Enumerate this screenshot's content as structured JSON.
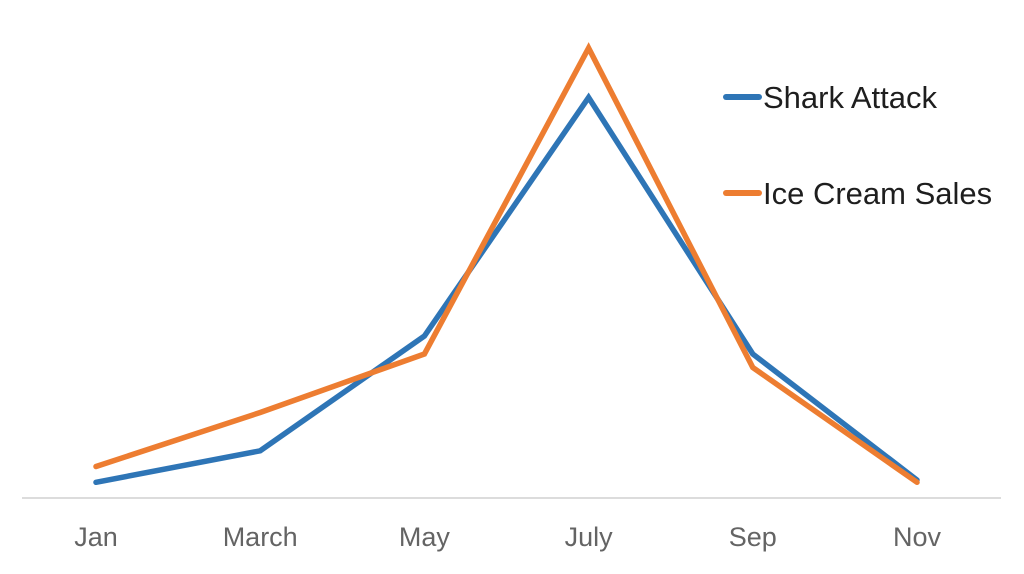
{
  "chart_data": {
    "type": "line",
    "categories": [
      "Jan",
      "March",
      "May",
      "July",
      "Sep",
      "Nov"
    ],
    "series": [
      {
        "name": "Shark Attack",
        "color": "#2e75b6",
        "values": [
          3.5,
          10.5,
          36,
          89,
          32,
          4
        ]
      },
      {
        "name": "Ice Cream Sales",
        "color": "#ed7d31",
        "values": [
          7,
          19,
          32,
          100,
          29,
          3.5
        ]
      }
    ],
    "title": "",
    "xlabel": "",
    "ylabel": "",
    "ylim": [
      0,
      105
    ],
    "grid": false,
    "legend_position": "top-right",
    "y_axis_visible": false
  },
  "axis": {
    "baseline_color": "#dcdcdc",
    "tick_label_color": "#646464"
  },
  "legend": {
    "text_color": "#1e1e1e"
  }
}
